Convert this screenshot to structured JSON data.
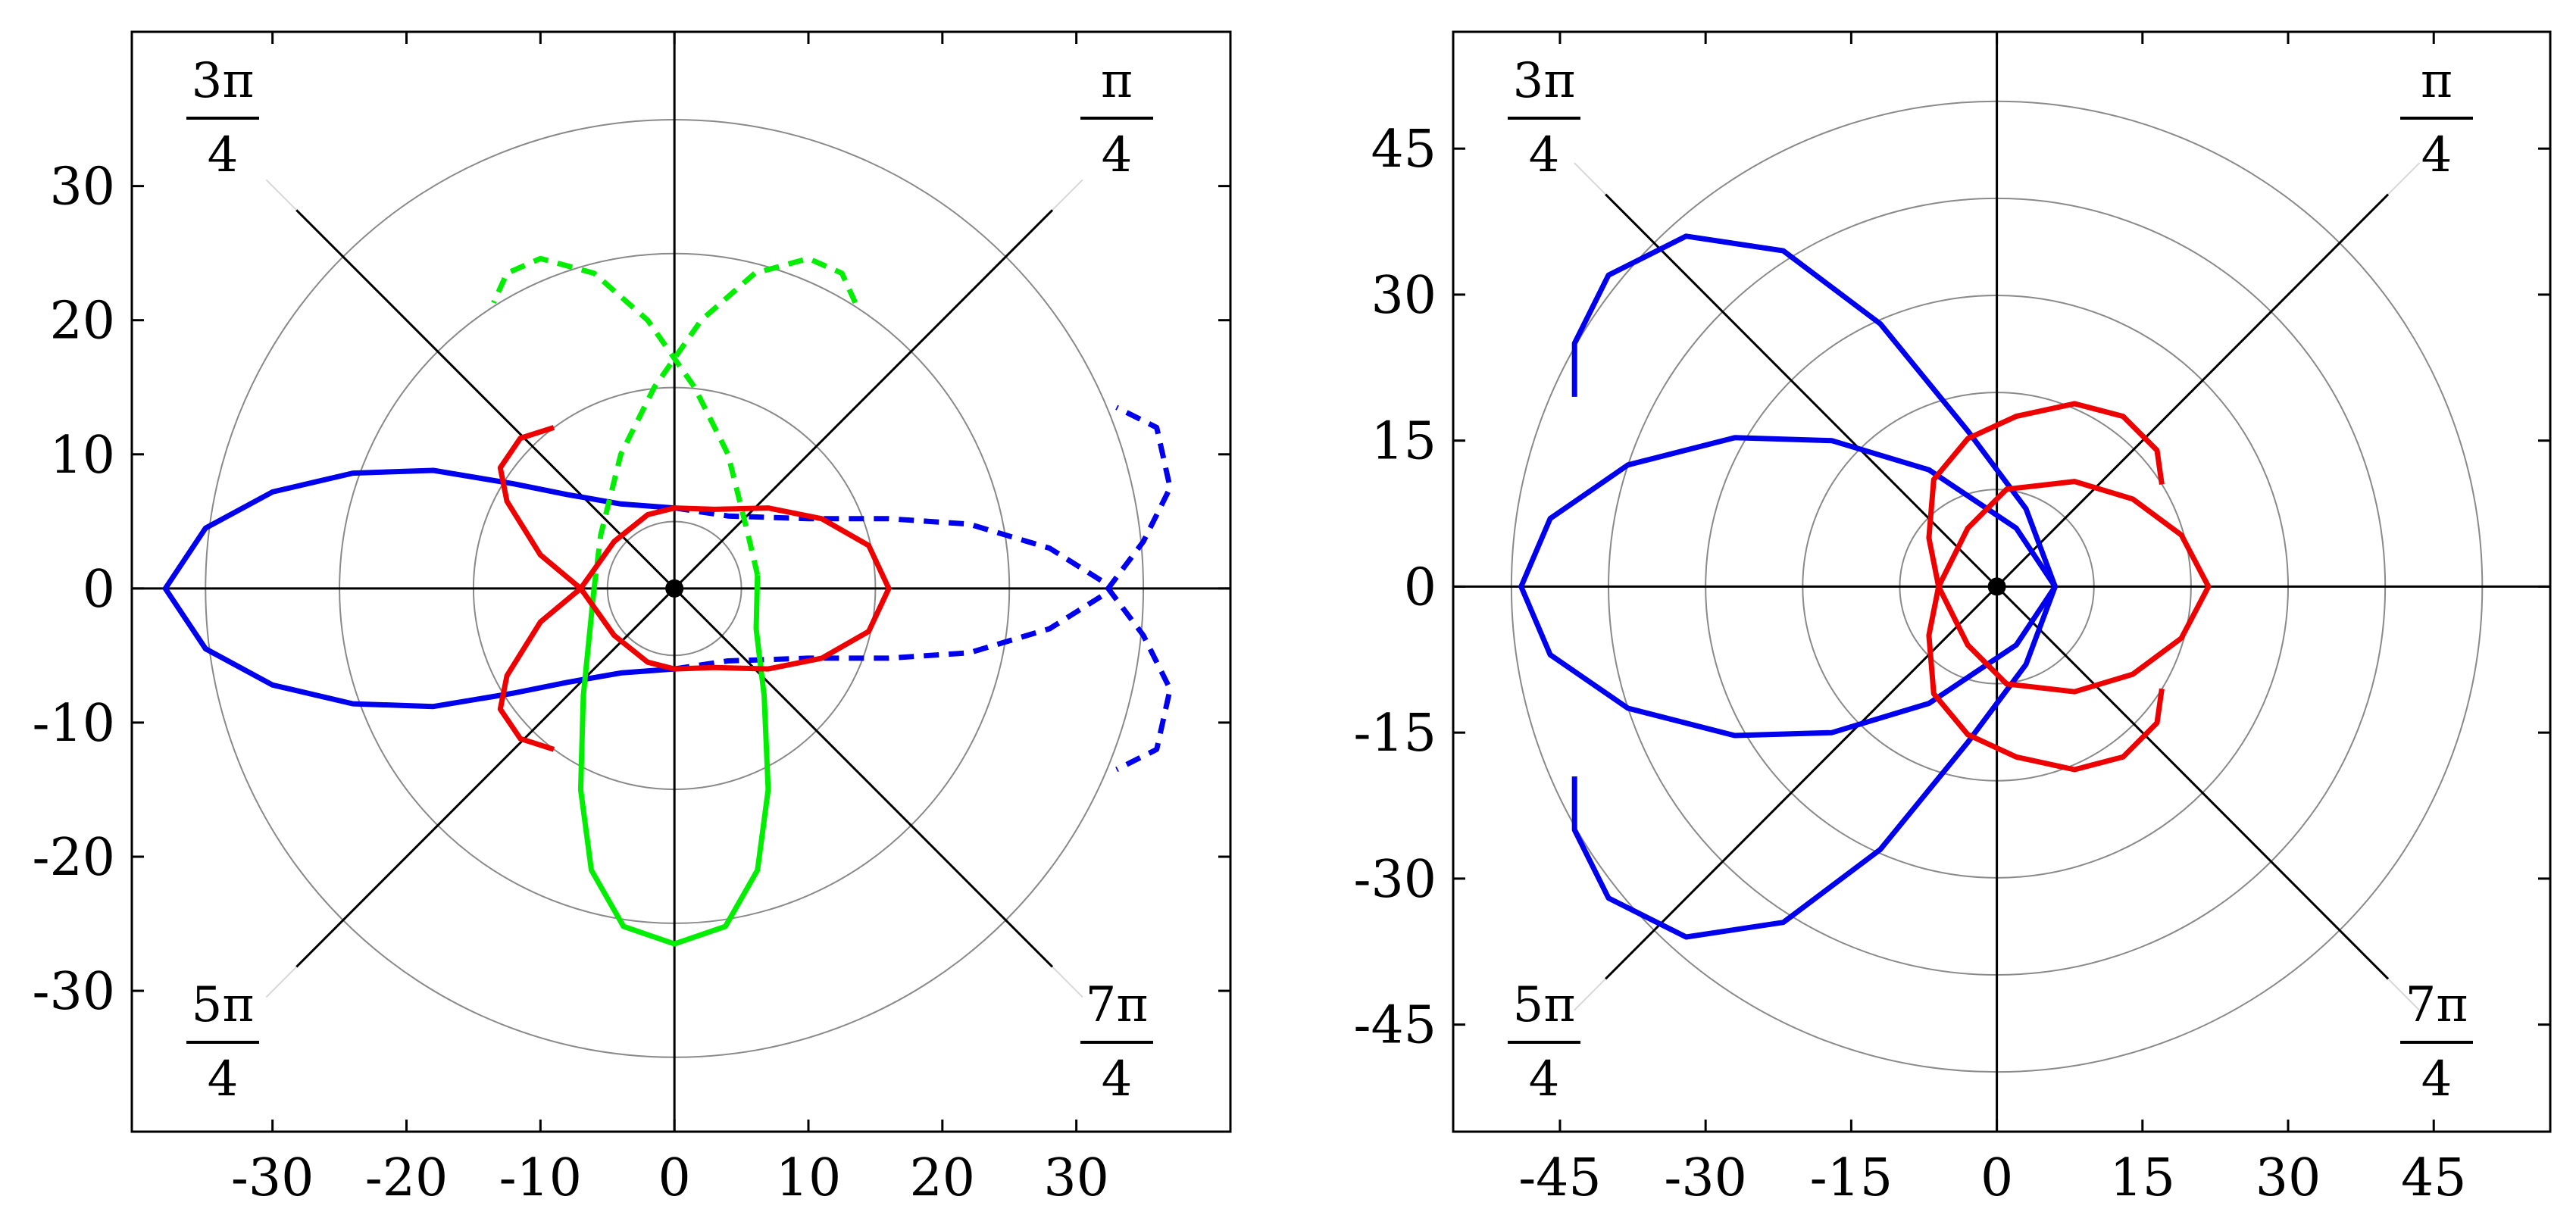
{
  "chart_data": [
    {
      "type": "line",
      "subtype": "polar-plot",
      "title": "",
      "xlabel": "",
      "ylabel": "",
      "xlim": [
        -40.5,
        41.5
      ],
      "ylim": [
        -40.5,
        41.5
      ],
      "x_ticks": [
        -30,
        -20,
        -10,
        0,
        10,
        20,
        30
      ],
      "y_ticks": [
        -30,
        -20,
        -10,
        0,
        10,
        20,
        30
      ],
      "x_tick_labels": [
        "-30",
        "-20",
        "-10",
        "0",
        "10",
        "20",
        "30"
      ],
      "y_tick_labels": [
        "-30",
        "-20",
        "-10",
        "0",
        "10",
        "20",
        "30"
      ],
      "circle_radii": [
        5,
        15,
        25,
        35
      ],
      "angle_labels": [
        {
          "num": "π",
          "den": "4",
          "angle_deg": 45
        },
        {
          "num": "3π",
          "den": "4",
          "angle_deg": 135
        },
        {
          "num": "5π",
          "den": "4",
          "angle_deg": 225
        },
        {
          "num": "7π",
          "den": "4",
          "angle_deg": 315
        }
      ],
      "origin_marker": true,
      "grid": false,
      "legend": "none",
      "series": [
        {
          "color": "#0000ee",
          "dash": false,
          "points": [
            [
              0,
              -6
            ],
            [
              -4,
              -6.3
            ],
            [
              -8,
              -7
            ],
            [
              -12,
              -7.8
            ],
            [
              -18,
              -8.8
            ],
            [
              -24,
              -8.6
            ],
            [
              -30,
              -7.2
            ],
            [
              -35,
              -4.5
            ],
            [
              -38,
              0
            ],
            [
              -35,
              4.5
            ],
            [
              -30,
              7.2
            ],
            [
              -24,
              8.6
            ],
            [
              -18,
              8.8
            ],
            [
              -12,
              7.8
            ],
            [
              -8,
              7
            ],
            [
              -4,
              6.3
            ],
            [
              0,
              6
            ]
          ]
        },
        {
          "color": "#0000ee",
          "dash": true,
          "points": [
            [
              0,
              -6
            ],
            [
              4,
              -5.4
            ],
            [
              10,
              -5.2
            ],
            [
              16,
              -5.2
            ],
            [
              22,
              -4.8
            ],
            [
              28,
              -3
            ],
            [
              32,
              -0.5
            ],
            [
              35,
              3.5
            ],
            [
              37,
              7.5
            ],
            [
              36,
              12
            ],
            [
              33,
              13.5
            ]
          ]
        },
        {
          "color": "#0000ee",
          "dash": true,
          "points": [
            [
              0,
              6
            ],
            [
              4,
              5.4
            ],
            [
              10,
              5.2
            ],
            [
              16,
              5.2
            ],
            [
              22,
              4.8
            ],
            [
              28,
              3
            ],
            [
              32,
              0.5
            ],
            [
              35,
              -3.5
            ],
            [
              37,
              -7.5
            ],
            [
              36,
              -12
            ],
            [
              33,
              -13.5
            ]
          ]
        },
        {
          "color": "#00ee00",
          "dash": false,
          "points": [
            [
              -6,
              0
            ],
            [
              -6.8,
              -8
            ],
            [
              -7,
              -15
            ],
            [
              -6.2,
              -21
            ],
            [
              -3.8,
              -25.2
            ],
            [
              0,
              -26.5
            ],
            [
              3.8,
              -25.2
            ],
            [
              6.2,
              -21
            ],
            [
              7,
              -15
            ],
            [
              6.7,
              -8
            ],
            [
              6.1,
              -3
            ],
            [
              6.2,
              1
            ]
          ]
        },
        {
          "color": "#00ee00",
          "dash": true,
          "points": [
            [
              -6,
              0
            ],
            [
              -5.5,
              4
            ],
            [
              -4,
              10
            ],
            [
              -1.5,
              15
            ],
            [
              2,
              20
            ],
            [
              6,
              23.5
            ],
            [
              10,
              24.6
            ],
            [
              12.5,
              23.5
            ],
            [
              13.5,
              21.3
            ]
          ]
        },
        {
          "color": "#00ee00",
          "dash": true,
          "points": [
            [
              6.2,
              1
            ],
            [
              5.5,
              4
            ],
            [
              4,
              10
            ],
            [
              1.5,
              15
            ],
            [
              -2,
              20
            ],
            [
              -6,
              23.5
            ],
            [
              -10,
              24.6
            ],
            [
              -12.5,
              23.5
            ],
            [
              -13.5,
              21.3
            ]
          ]
        },
        {
          "color": "#ee0000",
          "dash": false,
          "points": [
            [
              -9,
              12
            ],
            [
              -11.5,
              11.2
            ],
            [
              -13,
              9
            ],
            [
              -12.5,
              6.5
            ],
            [
              -10,
              2.5
            ],
            [
              -7,
              0
            ],
            [
              -4.5,
              -3.5
            ],
            [
              -2,
              -5.5
            ],
            [
              0,
              -6
            ],
            [
              3,
              -5.9
            ],
            [
              7,
              -6
            ],
            [
              11,
              -5.2
            ],
            [
              14.5,
              -3.2
            ],
            [
              16,
              0
            ],
            [
              14.5,
              3.2
            ],
            [
              11,
              5.2
            ],
            [
              7,
              6
            ],
            [
              3,
              5.9
            ],
            [
              0,
              6
            ],
            [
              -2,
              5.5
            ],
            [
              -4.5,
              3.5
            ],
            [
              -7,
              0
            ],
            [
              -10,
              -2.5
            ],
            [
              -12.5,
              -6.5
            ],
            [
              -13,
              -9
            ],
            [
              -11.5,
              -11.2
            ],
            [
              -9,
              -12
            ]
          ]
        }
      ]
    },
    {
      "type": "line",
      "subtype": "polar-plot",
      "title": "",
      "xlabel": "",
      "ylabel": "",
      "xlim": [
        -56,
        57
      ],
      "ylim": [
        -56,
        57
      ],
      "x_ticks": [
        -45,
        -30,
        -15,
        0,
        15,
        30,
        45
      ],
      "y_ticks": [
        -45,
        -30,
        -15,
        0,
        15,
        30,
        45
      ],
      "x_tick_labels": [
        "-45",
        "-30",
        "-15",
        "0",
        "15",
        "30",
        "45"
      ],
      "y_tick_labels": [
        "-45",
        "-30",
        "-15",
        "0",
        "15",
        "30",
        "45"
      ],
      "circle_radii": [
        10,
        20,
        30,
        40,
        50
      ],
      "angle_labels": [
        {
          "num": "π",
          "den": "4",
          "angle_deg": 45
        },
        {
          "num": "3π",
          "den": "4",
          "angle_deg": 135
        },
        {
          "num": "5π",
          "den": "4",
          "angle_deg": 225
        },
        {
          "num": "7π",
          "den": "4",
          "angle_deg": 315
        }
      ],
      "origin_marker": true,
      "grid": false,
      "legend": "none",
      "series": [
        {
          "color": "#0000ee",
          "dash": false,
          "points": [
            [
              -43.5,
              19.5
            ],
            [
              -43.5,
              25
            ],
            [
              -40,
              32
            ],
            [
              -32,
              36
            ],
            [
              -22,
              34.5
            ],
            [
              -12,
              27
            ],
            [
              -3,
              16
            ],
            [
              3,
              8
            ],
            [
              6,
              0
            ],
            [
              3,
              -8
            ],
            [
              -3,
              -16
            ],
            [
              -12,
              -27
            ],
            [
              -22,
              -34.5
            ],
            [
              -32,
              -36
            ],
            [
              -40,
              -32
            ],
            [
              -43.5,
              -25
            ],
            [
              -43.5,
              -19.5
            ]
          ]
        },
        {
          "color": "#0000ee",
          "dash": false,
          "points": [
            [
              6,
              0
            ],
            [
              2,
              -6
            ],
            [
              -7,
              -12
            ],
            [
              -17,
              -15
            ],
            [
              -27,
              -15.3
            ],
            [
              -38,
              -12.5
            ],
            [
              -46,
              -7
            ],
            [
              -49,
              0
            ],
            [
              -46,
              7
            ],
            [
              -38,
              12.5
            ],
            [
              -27,
              15.3
            ],
            [
              -17,
              15
            ],
            [
              -7,
              12
            ],
            [
              2,
              6
            ],
            [
              6,
              0
            ]
          ]
        },
        {
          "color": "#ee0000",
          "dash": false,
          "points": [
            [
              17,
              10.5
            ],
            [
              16.5,
              14
            ],
            [
              13,
              17.5
            ],
            [
              8,
              18.8
            ],
            [
              2,
              17.5
            ],
            [
              -3,
              15.2
            ],
            [
              -6.5,
              11
            ],
            [
              -7,
              5
            ],
            [
              -6,
              0
            ],
            [
              -3,
              -6
            ],
            [
              1,
              -10
            ],
            [
              8,
              -10.8
            ],
            [
              14,
              -9
            ],
            [
              19,
              -5.3
            ],
            [
              21.8,
              0
            ],
            [
              19,
              5.3
            ],
            [
              14,
              9
            ],
            [
              8,
              10.8
            ],
            [
              1,
              10
            ],
            [
              -3,
              6
            ],
            [
              -6,
              0
            ],
            [
              -7,
              -5
            ],
            [
              -6.5,
              -11
            ],
            [
              -3,
              -15.2
            ],
            [
              2,
              -17.5
            ],
            [
              8,
              -18.8
            ],
            [
              13,
              -17.5
            ],
            [
              16.5,
              -14
            ],
            [
              17,
              -10.5
            ]
          ]
        }
      ]
    }
  ]
}
